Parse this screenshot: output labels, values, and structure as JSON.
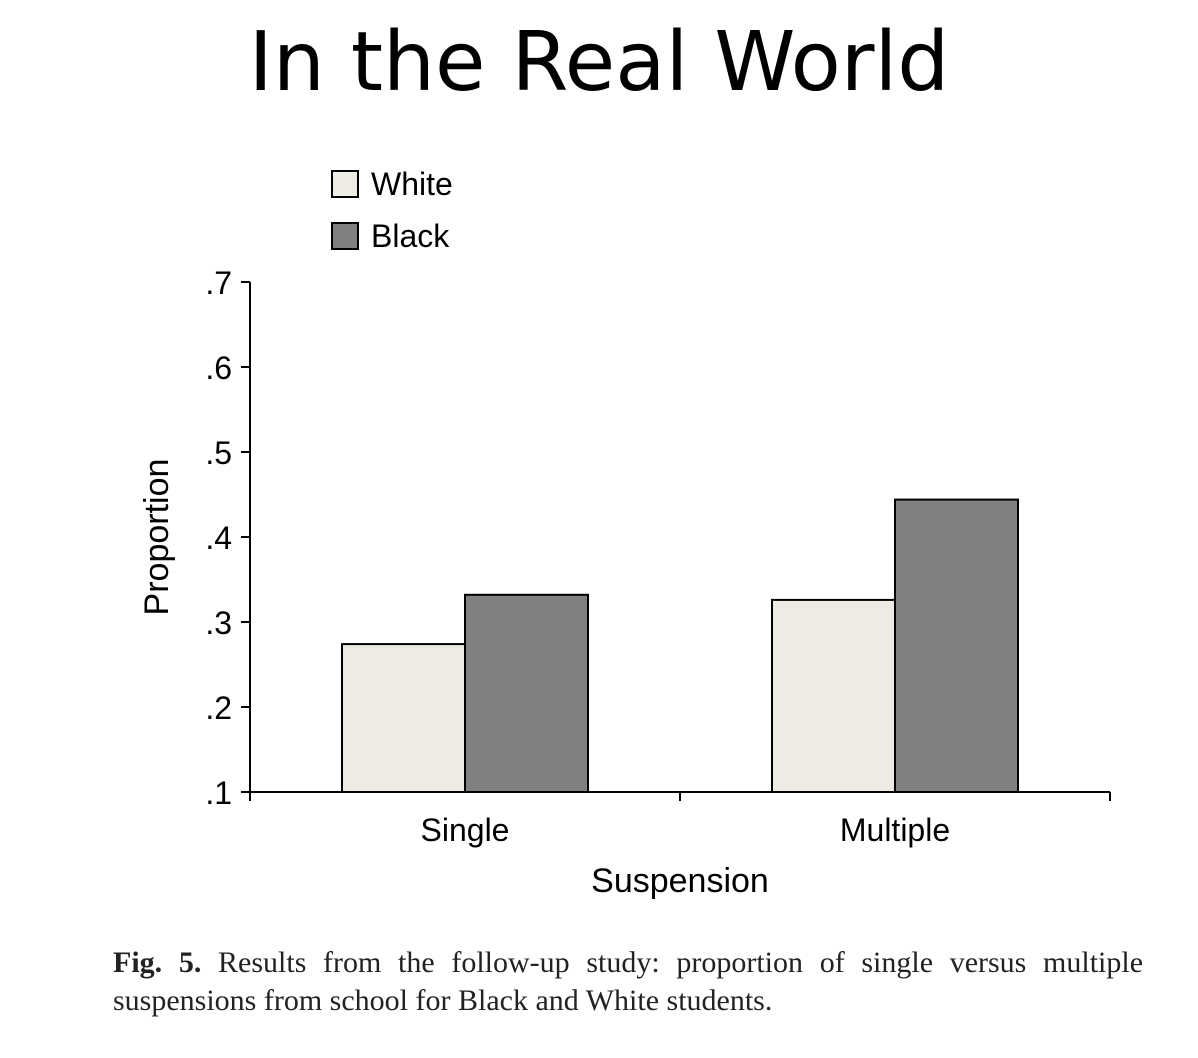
{
  "slide": {
    "title": "In the Real World"
  },
  "chart_data": {
    "type": "bar",
    "categories": [
      "Single",
      "Multiple"
    ],
    "series": [
      {
        "name": "White",
        "values": [
          0.274,
          0.326
        ],
        "color": "#eeebe4"
      },
      {
        "name": "Black",
        "values": [
          0.332,
          0.444
        ],
        "color": "#808080"
      }
    ],
    "xlabel": "Suspension",
    "ylabel": "Proportion",
    "ylim": [
      0.1,
      0.7
    ],
    "yticks": [
      ".1",
      ".2",
      ".3",
      ".4",
      ".5",
      ".6",
      ".7"
    ],
    "legend_position": "top-left",
    "grid": false
  },
  "caption": {
    "label": "Fig. 5.",
    "text": "Results from the follow-up study: proportion of single versus multiple suspensions from school for Black and White students."
  }
}
